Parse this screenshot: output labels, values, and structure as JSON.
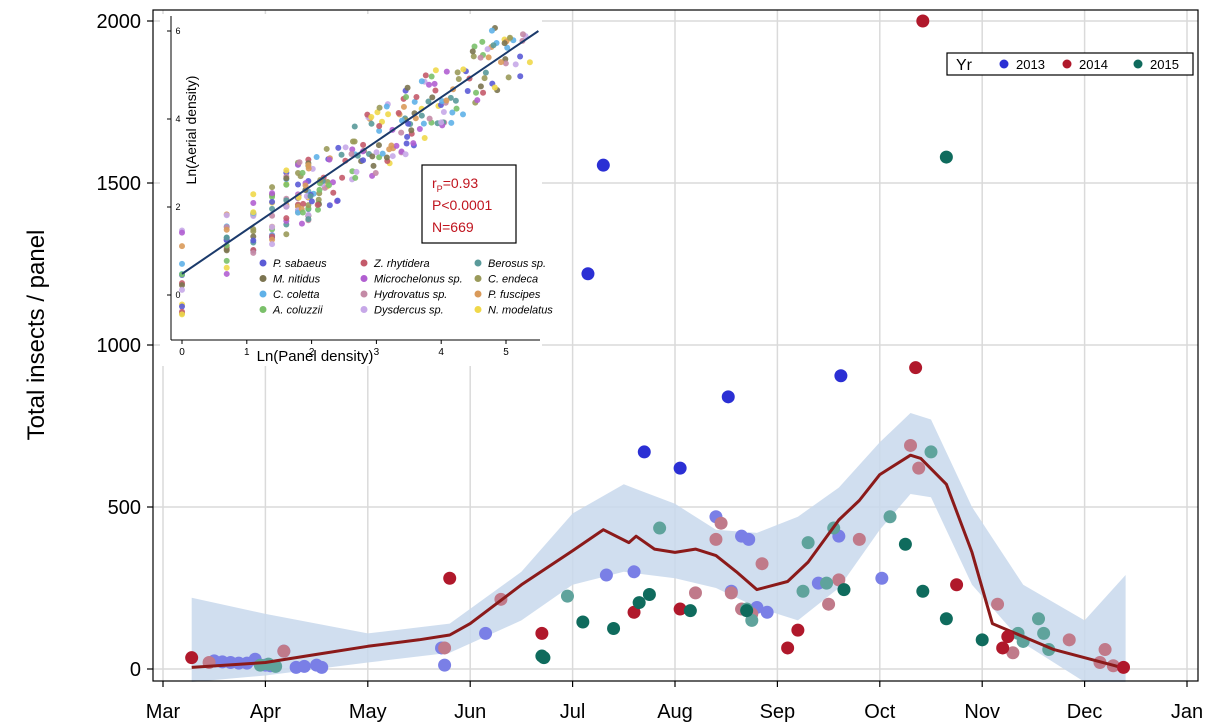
{
  "chart_data": [
    {
      "type": "scatter",
      "title": "",
      "ylabel": "Total insects / panel",
      "xlabel": "",
      "x_categories": [
        "Mar",
        "Apr",
        "May",
        "Jun",
        "Jul",
        "Aug",
        "Sep",
        "Oct",
        "Nov",
        "Dec",
        "Jan"
      ],
      "x_unit": "month index (Mar=0)",
      "xlim": [
        0,
        10
      ],
      "ylim": [
        -40,
        2040
      ],
      "yticks": [
        0,
        500,
        1000,
        1500,
        2000
      ],
      "grid": true,
      "legend": {
        "title": "Yr",
        "placement": "top-right",
        "entries": [
          "2013",
          "2014",
          "2015"
        ]
      },
      "colors": {
        "2013": "#2b2fd4",
        "2014": "#b0182b",
        "2015": "#0f6b5d",
        "smooth": "#8b1a1a",
        "band": "#c8d8ec"
      },
      "series": [
        {
          "name": "2013",
          "faded_points": [
            [
              0.5,
              25
            ],
            [
              0.58,
              22
            ],
            [
              0.66,
              20
            ],
            [
              0.74,
              18
            ],
            [
              0.82,
              18
            ],
            [
              0.9,
              30
            ],
            [
              1.0,
              12
            ],
            [
              1.05,
              10
            ],
            [
              1.18,
              55
            ],
            [
              1.3,
              5
            ],
            [
              1.38,
              8
            ],
            [
              1.5,
              12
            ],
            [
              1.55,
              5
            ],
            [
              2.72,
              65
            ],
            [
              2.75,
              12
            ],
            [
              3.15,
              110
            ],
            [
              4.33,
              290
            ],
            [
              4.6,
              300
            ],
            [
              5.4,
              470
            ],
            [
              5.55,
              240
            ],
            [
              5.65,
              410
            ],
            [
              5.72,
              400
            ],
            [
              5.8,
              190
            ],
            [
              5.9,
              175
            ],
            [
              6.4,
              265
            ],
            [
              6.6,
              410
            ],
            [
              7.02,
              280
            ]
          ],
          "points": [
            [
              4.15,
              1220
            ],
            [
              4.3,
              1555
            ],
            [
              4.7,
              670
            ],
            [
              5.05,
              620
            ],
            [
              5.52,
              840
            ],
            [
              6.62,
              905
            ]
          ]
        },
        {
          "name": "2014",
          "faded_points": [
            [
              0.45,
              20
            ],
            [
              1.18,
              55
            ],
            [
              2.75,
              65
            ],
            [
              3.3,
              215
            ],
            [
              5.2,
              235
            ],
            [
              5.4,
              400
            ],
            [
              5.45,
              450
            ],
            [
              5.55,
              235
            ],
            [
              5.65,
              185
            ],
            [
              5.75,
              170
            ],
            [
              5.85,
              325
            ],
            [
              6.5,
              200
            ],
            [
              6.6,
              275
            ],
            [
              6.8,
              400
            ],
            [
              7.3,
              690
            ],
            [
              7.38,
              620
            ],
            [
              8.15,
              200
            ],
            [
              8.3,
              50
            ],
            [
              8.85,
              90
            ],
            [
              9.15,
              20
            ],
            [
              9.2,
              60
            ],
            [
              9.28,
              10
            ]
          ],
          "points": [
            [
              0.28,
              35
            ],
            [
              2.8,
              280
            ],
            [
              3.7,
              110
            ],
            [
              4.6,
              175
            ],
            [
              5.05,
              185
            ],
            [
              6.1,
              65
            ],
            [
              6.2,
              120
            ],
            [
              7.35,
              930
            ],
            [
              7.42,
              2000
            ],
            [
              7.75,
              260
            ],
            [
              8.2,
              65
            ],
            [
              8.25,
              100
            ],
            [
              9.38,
              5
            ]
          ]
        },
        {
          "name": "2015",
          "faded_points": [
            [
              0.95,
              12
            ],
            [
              1.03,
              15
            ],
            [
              1.1,
              8
            ],
            [
              3.95,
              225
            ],
            [
              4.85,
              435
            ],
            [
              5.7,
              185
            ],
            [
              5.75,
              150
            ],
            [
              6.25,
              240
            ],
            [
              6.3,
              390
            ],
            [
              6.48,
              265
            ],
            [
              6.55,
              435
            ],
            [
              7.1,
              470
            ],
            [
              7.5,
              670
            ],
            [
              8.35,
              110
            ],
            [
              8.4,
              85
            ],
            [
              8.55,
              155
            ],
            [
              8.6,
              110
            ],
            [
              8.65,
              60
            ]
          ],
          "points": [
            [
              3.7,
              40
            ],
            [
              3.72,
              35
            ],
            [
              4.1,
              145
            ],
            [
              4.4,
              125
            ],
            [
              4.65,
              205
            ],
            [
              4.75,
              230
            ],
            [
              5.15,
              180
            ],
            [
              5.7,
              180
            ],
            [
              6.65,
              245
            ],
            [
              7.25,
              385
            ],
            [
              7.42,
              240
            ],
            [
              7.65,
              1580
            ],
            [
              7.65,
              155
            ],
            [
              8.0,
              90
            ]
          ]
        }
      ],
      "smooth_line": {
        "x": [
          0.28,
          1.0,
          1.5,
          2.0,
          2.5,
          2.8,
          3.0,
          3.5,
          4.0,
          4.3,
          4.55,
          4.62,
          4.8,
          5.0,
          5.2,
          5.4,
          5.6,
          5.8,
          6.1,
          6.3,
          6.6,
          6.8,
          7.0,
          7.3,
          7.4,
          7.65,
          7.9,
          8.1,
          8.4,
          8.7,
          9.0,
          9.3,
          9.4
        ],
        "y": [
          5,
          20,
          45,
          70,
          90,
          105,
          140,
          260,
          365,
          430,
          390,
          410,
          370,
          360,
          370,
          350,
          300,
          245,
          270,
          330,
          460,
          520,
          600,
          660,
          650,
          570,
          360,
          140,
          100,
          60,
          35,
          10,
          0
        ]
      },
      "confidence_band": {
        "x": [
          0.28,
          1.0,
          2.0,
          2.8,
          3.5,
          4.0,
          4.5,
          5.0,
          5.4,
          5.8,
          6.2,
          6.6,
          7.0,
          7.3,
          7.5,
          7.9,
          8.4,
          9.0,
          9.4
        ],
        "upper": [
          220,
          170,
          110,
          140,
          300,
          480,
          570,
          510,
          430,
          420,
          470,
          560,
          700,
          790,
          770,
          500,
          260,
          150,
          290
        ],
        "lower": [
          -40,
          -20,
          20,
          50,
          150,
          260,
          300,
          280,
          250,
          190,
          150,
          250,
          430,
          540,
          530,
          260,
          80,
          -40,
          -40
        ]
      }
    },
    {
      "type": "scatter",
      "title": "",
      "xlabel": "Ln(Panel density)",
      "ylabel": "Ln(Aerial density)",
      "xlim": [
        -0.15,
        5.5
      ],
      "ylim": [
        -0.6,
        6.3
      ],
      "xticks": [
        0,
        1,
        2,
        3,
        4,
        5
      ],
      "yticks": [
        0,
        2,
        4,
        6
      ],
      "annotation": {
        "r_p": "0.93",
        "P": "P<0.0001",
        "N": "N=669"
      },
      "annotation_label_r": "r",
      "annotation_label_sub": "P",
      "annotation_label_val": "=0.93",
      "fit_line": {
        "x": [
          0,
          5.5
        ],
        "y": [
          0.48,
          6.0
        ]
      },
      "species": [
        {
          "name": "P. sabaeus",
          "color": "#5b5bd6"
        },
        {
          "name": "M. nitidus",
          "color": "#7b7450"
        },
        {
          "name": "C. coletta",
          "color": "#5fb1e8"
        },
        {
          "name": "A. coluzzii",
          "color": "#7ac06a"
        },
        {
          "name": "Z. rhytidera",
          "color": "#c45a6a"
        },
        {
          "name": "Microchelonus sp.",
          "color": "#b15fd1"
        },
        {
          "name": "Hydrovatus sp.",
          "color": "#c48aa6"
        },
        {
          "name": "Dysdercus sp.",
          "color": "#c7a8e8"
        },
        {
          "name": "Berosus sp.",
          "color": "#5a9a9a"
        },
        {
          "name": "C. endeca",
          "color": "#9a9a5a"
        },
        {
          "name": "P. fuscipes",
          "color": "#d99a5a"
        },
        {
          "name": "N. modelatus",
          "color": "#f0d84a"
        }
      ]
    }
  ]
}
